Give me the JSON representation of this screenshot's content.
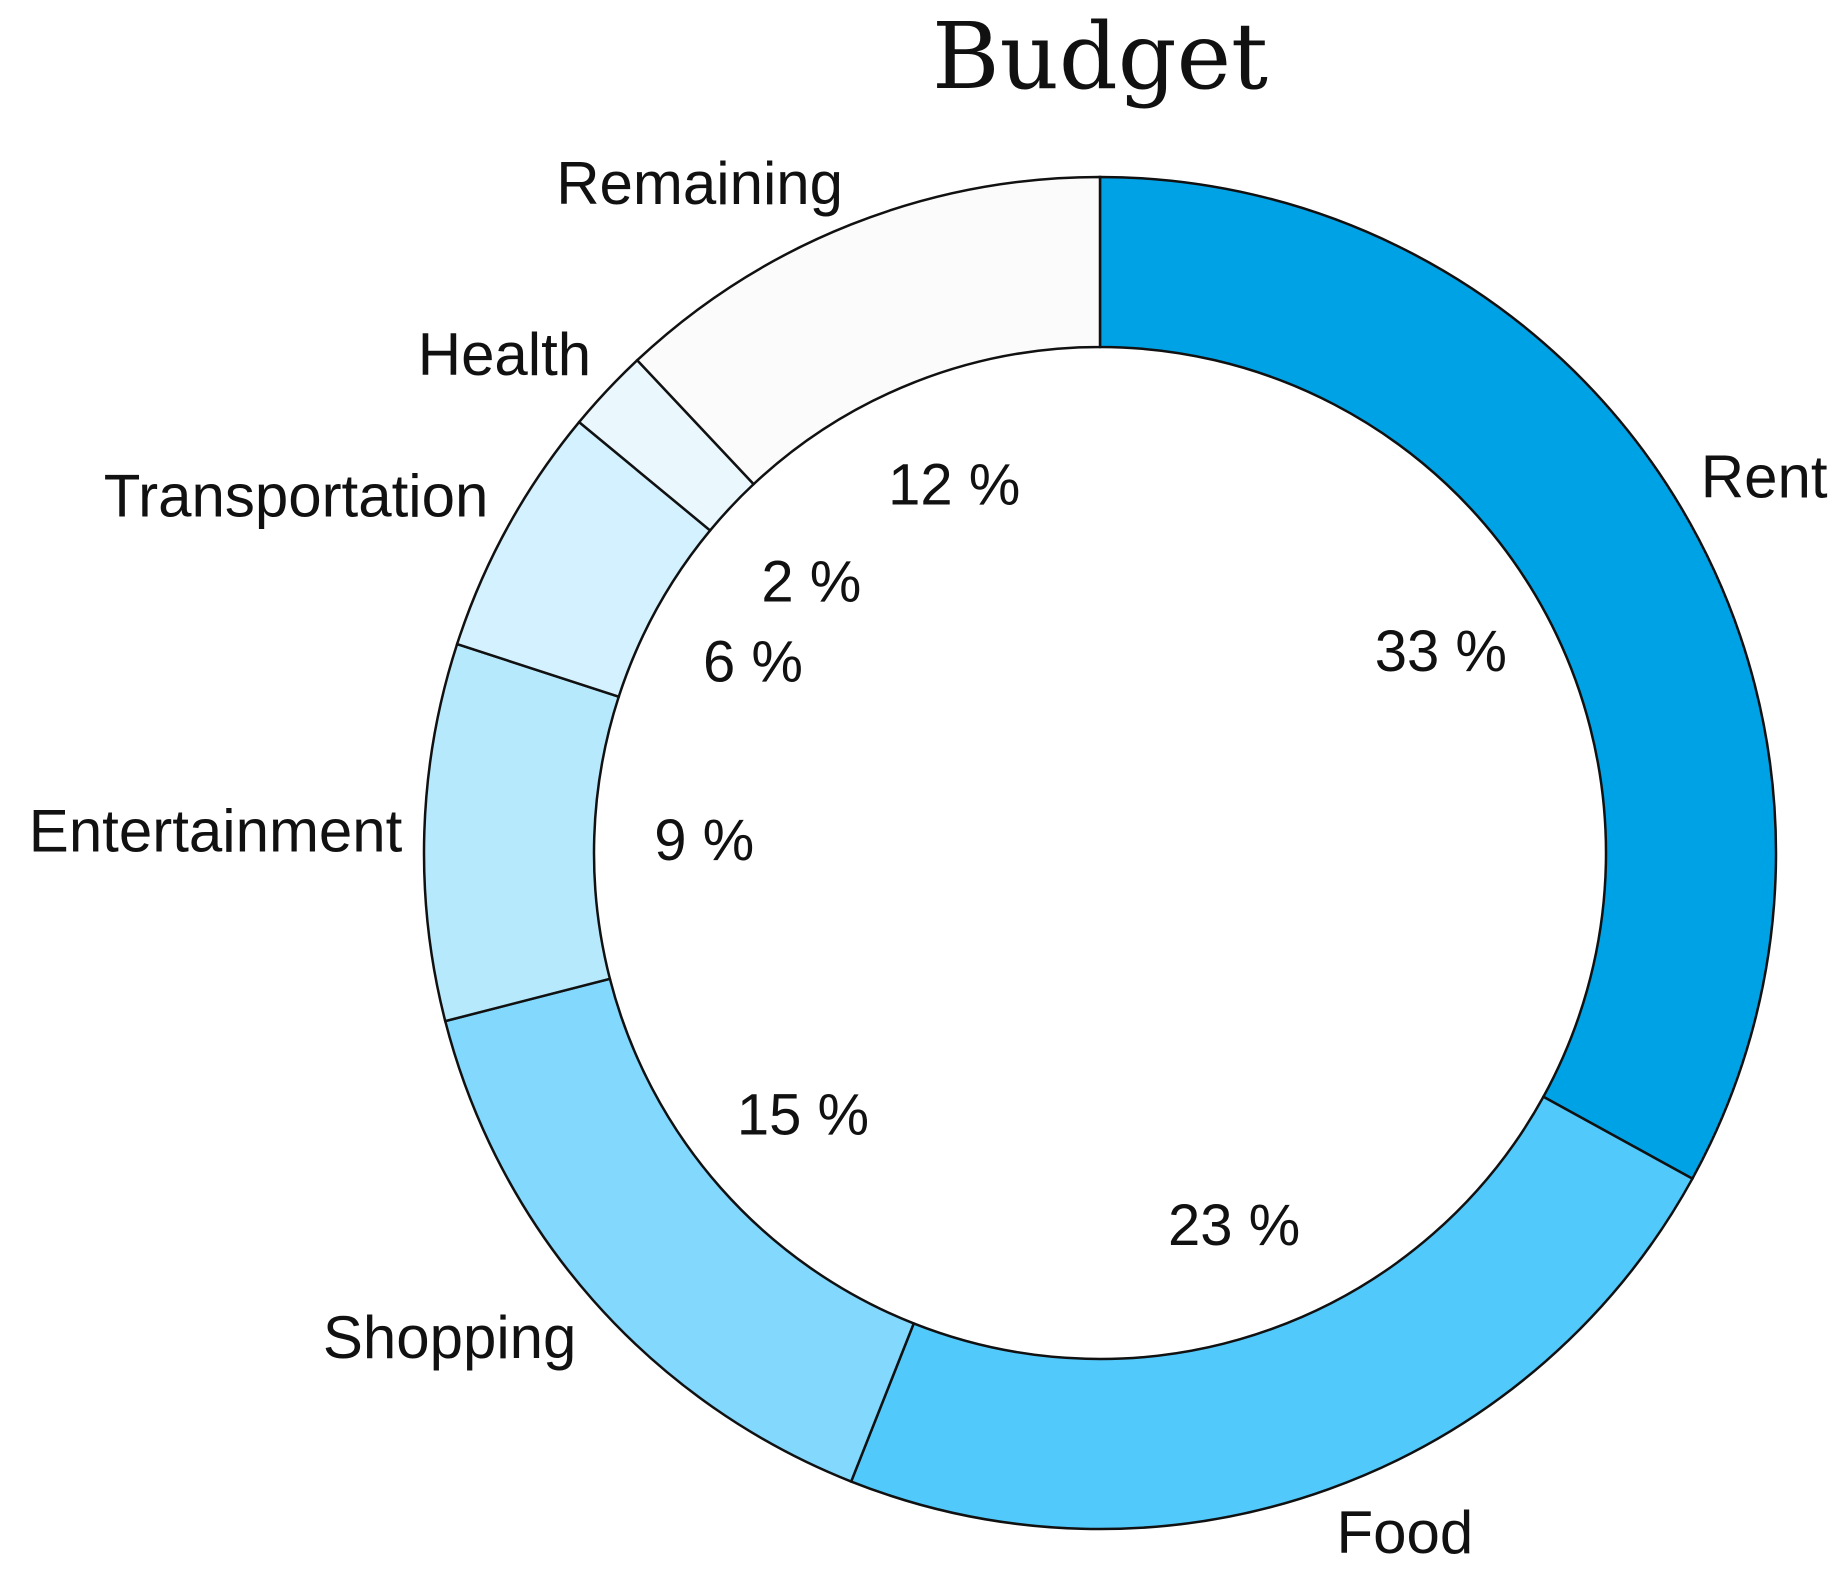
{
  "chart_data": {
    "type": "pie",
    "variant": "donut",
    "title": "Budget",
    "value_suffix": " %",
    "categories": [
      "Rent",
      "Food",
      "Shopping",
      "Entertainment",
      "Transportation",
      "Health",
      "Remaining"
    ],
    "values": [
      33,
      23,
      15,
      9,
      6,
      2,
      12
    ],
    "colors": [
      "#00a2e6",
      "#52c9fb",
      "#82d8fd",
      "#b7e9fd",
      "#d3f1fe",
      "#eaf8fe",
      "#fbfbfb"
    ],
    "start_angle": "12 o'clock",
    "direction": "clockwise",
    "legend": "none"
  }
}
